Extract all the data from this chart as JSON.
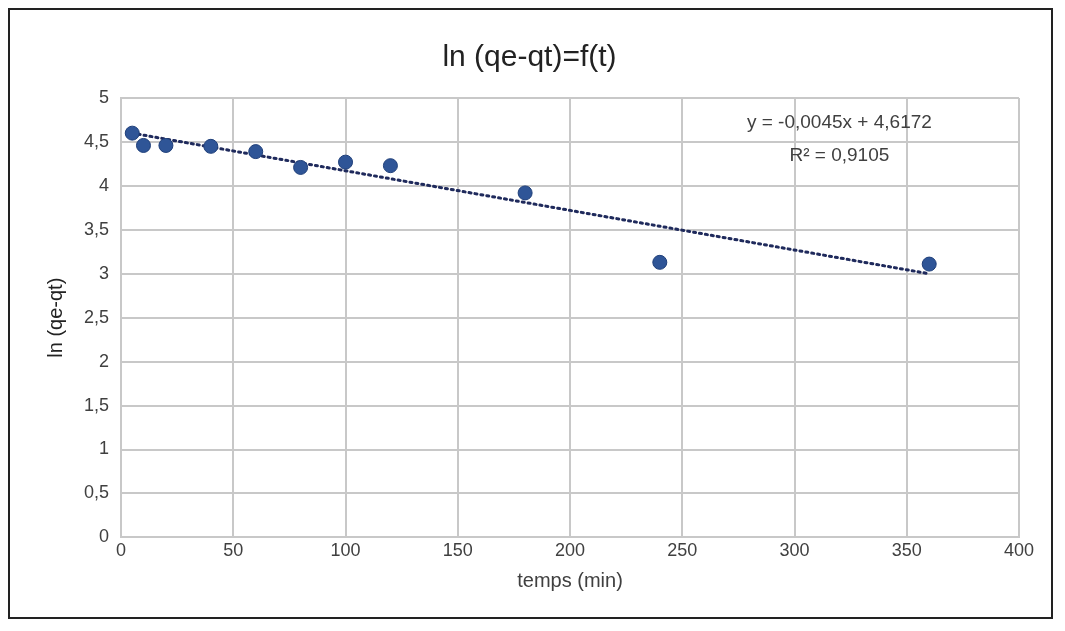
{
  "chart_data": {
    "type": "scatter",
    "title": "ln (qe-qt)=f(t)",
    "xlabel": "temps (min)",
    "ylabel": "ln (qe-qt)",
    "series": [
      {
        "type": "scatter",
        "color": "#2f5597",
        "x": [
          5,
          10,
          20,
          40,
          60,
          80,
          100,
          120,
          180,
          240,
          360
        ],
        "values": [
          4.6,
          4.46,
          4.46,
          4.45,
          4.39,
          4.21,
          4.27,
          4.23,
          3.92,
          3.13,
          3.11
        ],
        "marker": "circle"
      },
      {
        "type": "line",
        "color": "#1f2a5c",
        "x": [
          5,
          360
        ],
        "values": [
          4.6,
          3.0
        ],
        "line_style": "dotted",
        "marker": "none"
      }
    ],
    "xlim": [
      0,
      400
    ],
    "xticks": [
      0,
      50,
      100,
      150,
      200,
      250,
      300,
      350,
      400
    ],
    "ylim": [
      0,
      5
    ],
    "yticks": [
      0,
      {
        "value": 0.5,
        "label": "0,5"
      },
      1,
      {
        "value": 1.5,
        "label": "1,5"
      },
      2,
      {
        "value": 2.5,
        "label": "2,5"
      },
      3,
      {
        "value": 3.5,
        "label": "3,5"
      },
      4,
      {
        "value": 4.5,
        "label": "4,5"
      },
      5
    ],
    "grid": true,
    "legend": false,
    "annotations": [
      "y = -0,0045x + 4,6172",
      "R² = 0,9105"
    ]
  }
}
